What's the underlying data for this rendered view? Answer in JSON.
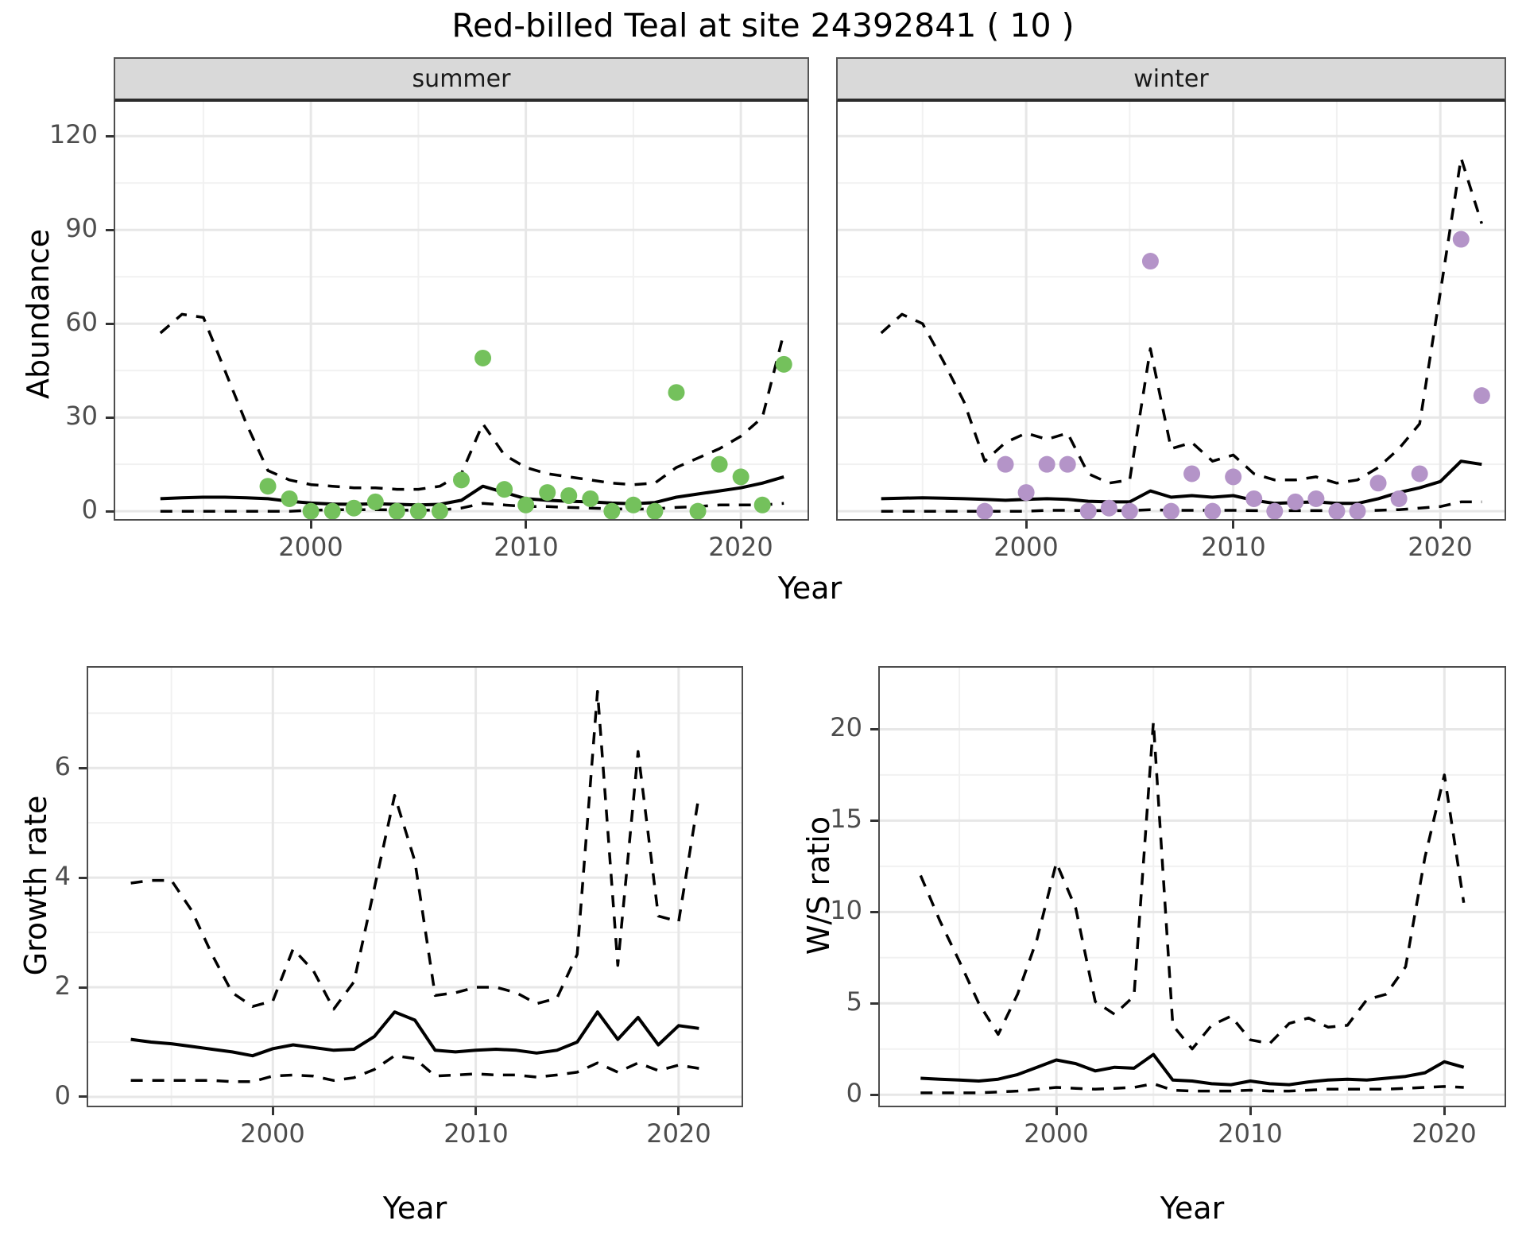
{
  "title": "Red-billed Teal at site 24392841 ( 10 )",
  "facets": [
    {
      "label": "summer"
    },
    {
      "label": "winter"
    }
  ],
  "axis_titles": {
    "abundance": "Abundance",
    "year_top": "Year",
    "growth": "Growth rate",
    "ws": "W/S ratio",
    "year_bottom_left": "Year",
    "year_bottom_right": "Year"
  },
  "colors": {
    "summer_point": "#74c15c",
    "winter_point": "#b494c8",
    "line": "#000000",
    "grid_major": "#e7e7e7",
    "grid_minor": "#f1f1f1",
    "strip_bg": "#d9d9d9",
    "panel_border": "#4d4d4d",
    "tick_text": "#4d4d4d"
  },
  "chart_data": [
    {
      "id": "abundance-summer",
      "type": "scatter",
      "facet": "summer",
      "xlabel": "Year",
      "ylabel": "Abundance",
      "xlim": [
        1990.9,
        2023.1
      ],
      "ylim": [
        -2.5,
        131
      ],
      "xticks": [
        2000,
        2010,
        2020
      ],
      "yticks": [
        0,
        30,
        60,
        90,
        120
      ],
      "xminor": [
        1995,
        2005,
        2015
      ],
      "yminor": [
        15,
        45,
        75,
        105
      ],
      "points": {
        "x": [
          1998,
          1999,
          2000,
          2001,
          2002,
          2003,
          2004,
          2005,
          2006,
          2007,
          2008,
          2009,
          2010,
          2011,
          2012,
          2013,
          2014,
          2015,
          2016,
          2017,
          2018,
          2019,
          2020,
          2021,
          2022
        ],
        "y": [
          8,
          4,
          0,
          0,
          1,
          3,
          0,
          0,
          0,
          10,
          49,
          7,
          2,
          6,
          5,
          4,
          0,
          2,
          0,
          38,
          0,
          15,
          11,
          2,
          47
        ]
      },
      "series": [
        {
          "name": "median",
          "style": "solid",
          "x": [
            1993,
            1994,
            1995,
            1996,
            1997,
            1998,
            1999,
            2000,
            2001,
            2002,
            2003,
            2004,
            2005,
            2006,
            2007,
            2008,
            2009,
            2010,
            2011,
            2012,
            2013,
            2014,
            2015,
            2016,
            2017,
            2018,
            2019,
            2020,
            2021,
            2022
          ],
          "y": [
            4.0,
            4.3,
            4.5,
            4.5,
            4.3,
            4.0,
            3.2,
            2.6,
            2.3,
            2.2,
            2.4,
            2.2,
            2.0,
            2.2,
            3.5,
            8.0,
            6.0,
            4.0,
            3.5,
            3.2,
            3.0,
            2.6,
            2.4,
            2.8,
            4.5,
            5.5,
            6.5,
            7.5,
            9.0,
            11.0
          ]
        },
        {
          "name": "upper 95% CI",
          "style": "dashed",
          "x": [
            1993,
            1994,
            1995,
            1996,
            1997,
            1998,
            1999,
            2000,
            2001,
            2002,
            2003,
            2004,
            2005,
            2006,
            2007,
            2008,
            2009,
            2010,
            2011,
            2012,
            2013,
            2014,
            2015,
            2016,
            2017,
            2018,
            2019,
            2020,
            2021,
            2022
          ],
          "y": [
            57,
            63,
            62,
            45,
            28,
            13,
            10,
            8.5,
            8,
            7.5,
            7.5,
            7,
            7,
            8,
            12,
            28,
            18,
            14,
            12,
            11,
            10,
            9,
            8.5,
            9,
            14,
            17,
            20,
            24,
            30,
            57
          ]
        },
        {
          "name": "lower 95% CI",
          "style": "dashed",
          "x": [
            1993,
            1994,
            1995,
            1996,
            1997,
            1998,
            1999,
            2000,
            2001,
            2002,
            2003,
            2004,
            2005,
            2006,
            2007,
            2008,
            2009,
            2010,
            2011,
            2012,
            2013,
            2014,
            2015,
            2016,
            2017,
            2018,
            2019,
            2020,
            2021,
            2022
          ],
          "y": [
            0,
            0,
            0,
            0,
            0,
            0,
            0,
            0.3,
            0.5,
            0.5,
            0.5,
            0.4,
            0.3,
            0.4,
            1,
            2.5,
            2,
            1.5,
            1.5,
            1.2,
            1,
            0.8,
            0.6,
            0.8,
            1.2,
            1.5,
            2,
            2,
            2,
            2.5
          ]
        }
      ]
    },
    {
      "id": "abundance-winter",
      "type": "scatter",
      "facet": "winter",
      "xlabel": "Year",
      "ylabel": "Abundance",
      "xlim": [
        1990.9,
        2023.1
      ],
      "ylim": [
        -2.5,
        131
      ],
      "xticks": [
        2000,
        2010,
        2020
      ],
      "yticks": [
        0,
        30,
        60,
        90,
        120
      ],
      "xminor": [
        1995,
        2005,
        2015
      ],
      "yminor": [
        15,
        45,
        75,
        105
      ],
      "points": {
        "x": [
          1998,
          1999,
          2000,
          2001,
          2002,
          2003,
          2004,
          2005,
          2006,
          2007,
          2008,
          2009,
          2010,
          2011,
          2012,
          2013,
          2014,
          2015,
          2016,
          2017,
          2018,
          2019,
          2021,
          2022
        ],
        "y": [
          0,
          15,
          6,
          15,
          15,
          0,
          1,
          0,
          80,
          0,
          12,
          0,
          11,
          4,
          0,
          3,
          4,
          0,
          0,
          9,
          4,
          12,
          87,
          37
        ]
      },
      "series": [
        {
          "name": "median",
          "style": "solid",
          "x": [
            1993,
            1994,
            1995,
            1996,
            1997,
            1998,
            1999,
            2000,
            2001,
            2002,
            2003,
            2004,
            2005,
            2006,
            2007,
            2008,
            2009,
            2010,
            2011,
            2012,
            2013,
            2014,
            2015,
            2016,
            2017,
            2018,
            2019,
            2020,
            2021,
            2022
          ],
          "y": [
            4.0,
            4.2,
            4.3,
            4.2,
            4.0,
            3.8,
            3.5,
            3.8,
            4.0,
            3.8,
            3.2,
            3.0,
            3.0,
            6.5,
            4.5,
            5.0,
            4.5,
            5.0,
            3.5,
            2.5,
            2.8,
            3.0,
            2.5,
            2.5,
            4.0,
            6.0,
            7.5,
            9.5,
            16.0,
            15.0
          ]
        },
        {
          "name": "upper 95% CI",
          "style": "dashed",
          "x": [
            1993,
            1994,
            1995,
            1996,
            1997,
            1998,
            1999,
            2000,
            2001,
            2002,
            2003,
            2004,
            2005,
            2006,
            2007,
            2008,
            2009,
            2010,
            2011,
            2012,
            2013,
            2014,
            2015,
            2016,
            2017,
            2018,
            2019,
            2020,
            2021,
            2022
          ],
          "y": [
            57,
            63,
            60,
            48,
            35,
            16,
            22,
            25,
            23,
            25,
            12,
            9,
            10,
            52,
            20,
            22,
            16,
            18,
            12,
            10,
            10,
            11,
            9,
            10,
            14,
            20,
            28,
            70,
            113,
            92
          ]
        },
        {
          "name": "lower 95% CI",
          "style": "dashed",
          "x": [
            1993,
            1994,
            1995,
            1996,
            1997,
            1998,
            1999,
            2000,
            2001,
            2002,
            2003,
            2004,
            2005,
            2006,
            2007,
            2008,
            2009,
            2010,
            2011,
            2012,
            2013,
            2014,
            2015,
            2016,
            2017,
            2018,
            2019,
            2020,
            2021,
            2022
          ],
          "y": [
            0,
            0,
            0,
            0,
            0,
            0,
            0,
            0,
            0.3,
            0.3,
            0.2,
            0.2,
            0.2,
            0.5,
            0.3,
            0.3,
            0.3,
            0.3,
            0.2,
            0.2,
            0.2,
            0.2,
            0.2,
            0.2,
            0.3,
            0.5,
            1,
            1.5,
            3,
            3
          ]
        }
      ]
    },
    {
      "id": "growth-rate",
      "type": "line",
      "xlabel": "Year",
      "ylabel": "Growth rate",
      "xlim": [
        1990.9,
        2023.1
      ],
      "ylim": [
        -0.16,
        7.83
      ],
      "xticks": [
        2000,
        2010,
        2020
      ],
      "yticks": [
        0,
        2,
        4,
        6
      ],
      "xminor": [
        1995,
        2005,
        2015
      ],
      "yminor": [
        1,
        3,
        5,
        7
      ],
      "series": [
        {
          "name": "median",
          "style": "solid",
          "x": [
            1993,
            1994,
            1995,
            1996,
            1997,
            1998,
            1999,
            2000,
            2001,
            2002,
            2003,
            2004,
            2005,
            2006,
            2007,
            2008,
            2009,
            2010,
            2011,
            2012,
            2013,
            2014,
            2015,
            2016,
            2017,
            2018,
            2019,
            2020,
            2021
          ],
          "y": [
            1.05,
            1.0,
            0.97,
            0.92,
            0.87,
            0.82,
            0.75,
            0.88,
            0.95,
            0.9,
            0.85,
            0.87,
            1.1,
            1.55,
            1.4,
            0.85,
            0.82,
            0.85,
            0.87,
            0.85,
            0.8,
            0.85,
            1.0,
            1.55,
            1.05,
            1.45,
            0.95,
            1.3,
            1.25
          ]
        },
        {
          "name": "upper 95% CI",
          "style": "dashed",
          "x": [
            1993,
            1994,
            1995,
            1996,
            1997,
            1998,
            1999,
            2000,
            2001,
            2002,
            2003,
            2004,
            2005,
            2006,
            2007,
            2008,
            2009,
            2010,
            2011,
            2012,
            2013,
            2014,
            2015,
            2016,
            2017,
            2018,
            2019,
            2020,
            2021
          ],
          "y": [
            3.9,
            3.95,
            3.95,
            3.4,
            2.6,
            1.9,
            1.65,
            1.75,
            2.7,
            2.3,
            1.6,
            2.1,
            3.8,
            5.5,
            4.3,
            1.85,
            1.9,
            2.0,
            2.0,
            1.9,
            1.7,
            1.8,
            2.6,
            7.4,
            2.4,
            6.3,
            3.3,
            3.2,
            5.5
          ]
        },
        {
          "name": "lower 95% CI",
          "style": "dashed",
          "x": [
            1993,
            1994,
            1995,
            1996,
            1997,
            1998,
            1999,
            2000,
            2001,
            2002,
            2003,
            2004,
            2005,
            2006,
            2007,
            2008,
            2009,
            2010,
            2011,
            2012,
            2013,
            2014,
            2015,
            2016,
            2017,
            2018,
            2019,
            2020,
            2021
          ],
          "y": [
            0.3,
            0.3,
            0.3,
            0.3,
            0.3,
            0.28,
            0.28,
            0.38,
            0.4,
            0.38,
            0.3,
            0.35,
            0.5,
            0.75,
            0.7,
            0.38,
            0.4,
            0.42,
            0.4,
            0.4,
            0.36,
            0.4,
            0.45,
            0.62,
            0.45,
            0.62,
            0.48,
            0.58,
            0.52
          ]
        }
      ]
    },
    {
      "id": "ws-ratio",
      "type": "line",
      "xlabel": "Year",
      "ylabel": "W/S ratio",
      "xlim": [
        1990.9,
        2023.1
      ],
      "ylim": [
        -0.6,
        23.37
      ],
      "xticks": [
        2000,
        2010,
        2020
      ],
      "yticks": [
        0,
        5,
        10,
        15,
        20
      ],
      "xminor": [
        1995,
        2005,
        2015
      ],
      "yminor": [
        2.5,
        7.5,
        12.5,
        17.5
      ],
      "series": [
        {
          "name": "median",
          "style": "solid",
          "x": [
            1993,
            1994,
            1995,
            1996,
            1997,
            1998,
            1999,
            2000,
            2001,
            2002,
            2003,
            2004,
            2005,
            2006,
            2007,
            2008,
            2009,
            2010,
            2011,
            2012,
            2013,
            2014,
            2015,
            2016,
            2017,
            2018,
            2019,
            2020,
            2021
          ],
          "y": [
            0.9,
            0.85,
            0.8,
            0.75,
            0.85,
            1.1,
            1.5,
            1.9,
            1.7,
            1.3,
            1.5,
            1.45,
            2.2,
            0.8,
            0.75,
            0.6,
            0.55,
            0.75,
            0.6,
            0.55,
            0.7,
            0.8,
            0.85,
            0.8,
            0.9,
            1.0,
            1.2,
            1.8,
            1.5
          ]
        },
        {
          "name": "upper 95% CI",
          "style": "dashed",
          "x": [
            1993,
            1994,
            1995,
            1996,
            1997,
            1998,
            1999,
            2000,
            2001,
            2002,
            2003,
            2004,
            2005,
            2006,
            2007,
            2008,
            2009,
            2010,
            2011,
            2012,
            2013,
            2014,
            2015,
            2016,
            2017,
            2018,
            2019,
            2020,
            2021
          ],
          "y": [
            12,
            9.5,
            7.3,
            5.0,
            3.3,
            5.5,
            8.5,
            12.7,
            10.2,
            5.1,
            4.4,
            5.4,
            20.4,
            3.8,
            2.5,
            3.8,
            4.3,
            3.0,
            2.8,
            3.9,
            4.2,
            3.7,
            3.8,
            5.2,
            5.5,
            7.0,
            13.0,
            17.5,
            10.5
          ]
        },
        {
          "name": "lower 95% CI",
          "style": "dashed",
          "x": [
            1993,
            1994,
            1995,
            1996,
            1997,
            1998,
            1999,
            2000,
            2001,
            2002,
            2003,
            2004,
            2005,
            2006,
            2007,
            2008,
            2009,
            2010,
            2011,
            2012,
            2013,
            2014,
            2015,
            2016,
            2017,
            2018,
            2019,
            2020,
            2021
          ],
          "y": [
            0.1,
            0.1,
            0.1,
            0.1,
            0.15,
            0.2,
            0.3,
            0.4,
            0.35,
            0.3,
            0.35,
            0.4,
            0.6,
            0.25,
            0.2,
            0.2,
            0.2,
            0.25,
            0.2,
            0.2,
            0.25,
            0.3,
            0.3,
            0.3,
            0.3,
            0.35,
            0.4,
            0.45,
            0.4
          ]
        }
      ]
    }
  ]
}
